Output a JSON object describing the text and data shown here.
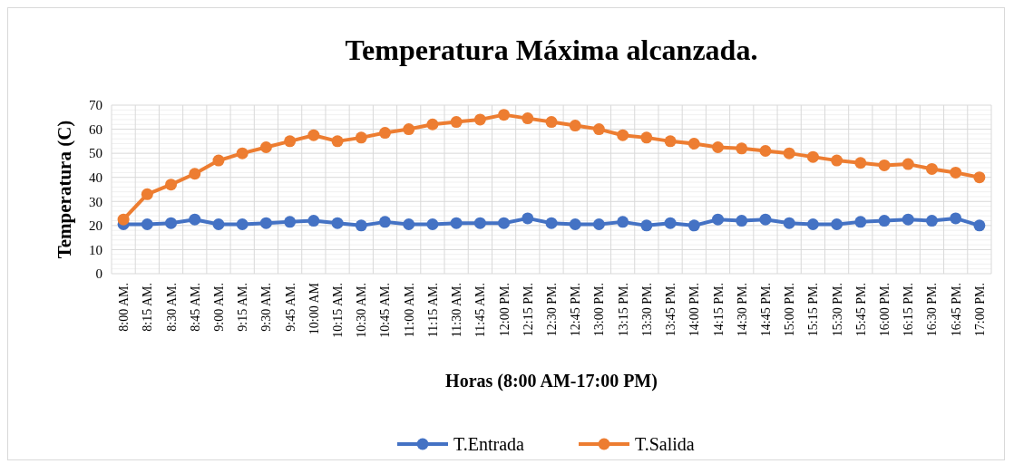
{
  "chart_data": {
    "type": "line",
    "title": "Temperatura Máxima alcanzada.",
    "xlabel": "Horas (8:00 AM-17:00 PM)",
    "ylabel": "Temperatura (C)",
    "categories": [
      "8:00 AM.",
      "8:15 AM.",
      "8:30 AM.",
      "8:45 AM.",
      "9:00 AM.",
      "9:15 AM.",
      "9:30 AM.",
      "9:45 AM.",
      "10:00 AM",
      "10:15 AM.",
      "10:30 AM.",
      "10:45 AM.",
      "11:00 AM.",
      "11:15 AM.",
      "11:30 AM.",
      "11:45 AM.",
      "12:00 PM.",
      "12:15 PM.",
      "12:30 PM.",
      "12:45 PM.",
      "13:00 PM.",
      "13:15 PM.",
      "13:30 PM.",
      "13:45 PM.",
      "14:00 PM.",
      "14:15 PM.",
      "14:30 PM.",
      "14:45 PM.",
      "15:00 PM.",
      "15:15 PM.",
      "15:30 PM.",
      "15:45 PM.",
      "16:00 PM.",
      "16:15 PM.",
      "16:30 PM.",
      "16:45 PM.",
      "17:00 PM."
    ],
    "series": [
      {
        "name": "T.Entrada",
        "color": "#4472c4",
        "values": [
          20.5,
          20.5,
          21,
          22.5,
          20.5,
          20.5,
          21,
          21.5,
          22,
          21,
          20,
          21.5,
          20.5,
          20.5,
          21,
          21,
          21,
          23,
          21,
          20.5,
          20.5,
          21.5,
          20,
          21,
          20,
          22.5,
          22,
          22.5,
          21,
          20.5,
          20.5,
          21.5,
          22,
          22.5,
          22,
          23,
          20
        ]
      },
      {
        "name": "T.Salida",
        "color": "#ed7d31",
        "values": [
          22.5,
          33,
          37,
          41.5,
          47,
          50,
          52.5,
          55,
          57.5,
          55,
          56.5,
          58.5,
          60,
          62,
          63,
          64,
          66,
          64.5,
          63,
          61.5,
          60,
          57.5,
          56.5,
          55,
          54,
          52.5,
          52,
          51,
          50,
          48.5,
          47,
          46,
          45,
          45.5,
          43.5,
          42,
          40
        ]
      }
    ],
    "ylim": [
      0,
      70
    ],
    "yticks": [
      0,
      10,
      20,
      30,
      40,
      50,
      60,
      70
    ],
    "grid": true,
    "legend": "bottom",
    "marker": "circle",
    "line_style": "solid"
  }
}
